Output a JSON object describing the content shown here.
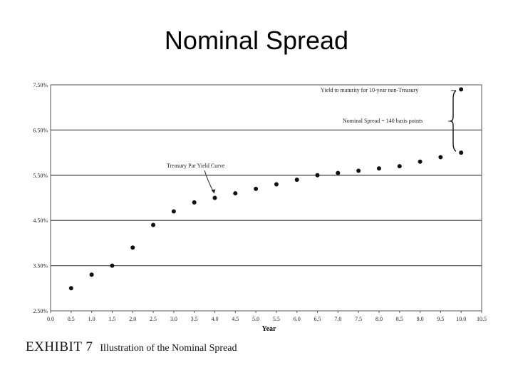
{
  "slide": {
    "title": "Nominal Spread"
  },
  "exhibit": {
    "number": "EXHIBIT 7",
    "caption": "Illustration of the Nominal Spread"
  },
  "chart_data": {
    "type": "scatter",
    "xlabel": "Year",
    "ylabel": "",
    "xlim": [
      0.0,
      10.5
    ],
    "ylim": [
      2.5,
      7.5
    ],
    "x_ticks": [
      0.0,
      0.5,
      1.0,
      1.5,
      2.0,
      2.5,
      3.0,
      3.5,
      4.0,
      4.5,
      5.0,
      5.5,
      6.0,
      6.5,
      7.0,
      7.5,
      8.0,
      8.5,
      9.0,
      9.5,
      10.0,
      10.5
    ],
    "x_tick_labels": [
      "0.0",
      "0.5",
      "1.0",
      "1.5",
      "2.0",
      "2.5",
      "3.0",
      "3.5",
      "4.0",
      "4.5",
      "5.0",
      "5.5",
      "6.0",
      "6.5",
      "7.0",
      "7.5",
      "8.0",
      "8.5",
      "9.0",
      "9.5",
      "10.0",
      "10.5"
    ],
    "y_ticks": [
      2.5,
      3.5,
      4.5,
      5.5,
      6.5,
      7.5
    ],
    "y_tick_labels": [
      "2.50%",
      "3.50%",
      "4.50%",
      "5.50%",
      "6.50%",
      "7.50%"
    ],
    "grid": "horizontal",
    "series": [
      {
        "name": "Treasury Par Yield Curve",
        "x": [
          0.5,
          1.0,
          1.5,
          2.0,
          2.5,
          3.0,
          3.5,
          4.0,
          4.5,
          5.0,
          5.5,
          6.0,
          6.5,
          7.0,
          7.5,
          8.0,
          8.5,
          9.0,
          9.5,
          10.0
        ],
        "y": [
          3.0,
          3.3,
          3.5,
          3.9,
          4.4,
          4.7,
          4.9,
          5.0,
          5.1,
          5.2,
          5.3,
          5.4,
          5.5,
          5.55,
          5.6,
          5.65,
          5.7,
          5.8,
          5.9,
          6.0
        ]
      },
      {
        "name": "Yield to maturity for 10-year non-Treasury",
        "x": [
          10.0
        ],
        "y": [
          7.4
        ]
      }
    ],
    "annotations": [
      {
        "text": "Yield to maturity for 10-year non-Treasury"
      },
      {
        "text": "Nominal Spread = 140 basis points"
      },
      {
        "text": "Treasury Par Yield Curve"
      }
    ],
    "colors": {
      "points": "#111111",
      "grid": "#555555",
      "frame": "#555555"
    }
  }
}
